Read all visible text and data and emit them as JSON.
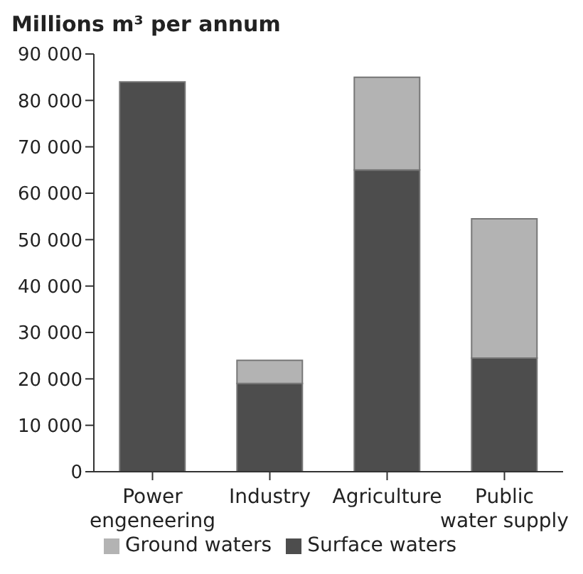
{
  "chart_data": {
    "type": "bar",
    "title": "Millions m³ per annum",
    "categories": [
      "Power engeneering",
      "Industry",
      "Agriculture",
      "Public water supply"
    ],
    "stacked": true,
    "series": [
      {
        "name": "Surface waters",
        "color": "#4d4d4d",
        "values": [
          84000,
          19000,
          65000,
          24500
        ]
      },
      {
        "name": "Ground waters",
        "color": "#b3b3b3",
        "values": [
          0,
          5000,
          20000,
          30000
        ]
      }
    ],
    "ylim": [
      0,
      90000
    ],
    "yticks": [
      {
        "value": 0,
        "label": "0"
      },
      {
        "value": 10000,
        "label": "10 000"
      },
      {
        "value": 20000,
        "label": "20 000"
      },
      {
        "value": 30000,
        "label": "30 000"
      },
      {
        "value": 40000,
        "label": "40 000"
      },
      {
        "value": 50000,
        "label": "50 000"
      },
      {
        "value": 60000,
        "label": "60 000"
      },
      {
        "value": 70000,
        "label": "70 000"
      },
      {
        "value": 80000,
        "label": "80 000"
      },
      {
        "value": 90000,
        "label": "90 000"
      }
    ],
    "grid": false,
    "legend": "bottom"
  }
}
